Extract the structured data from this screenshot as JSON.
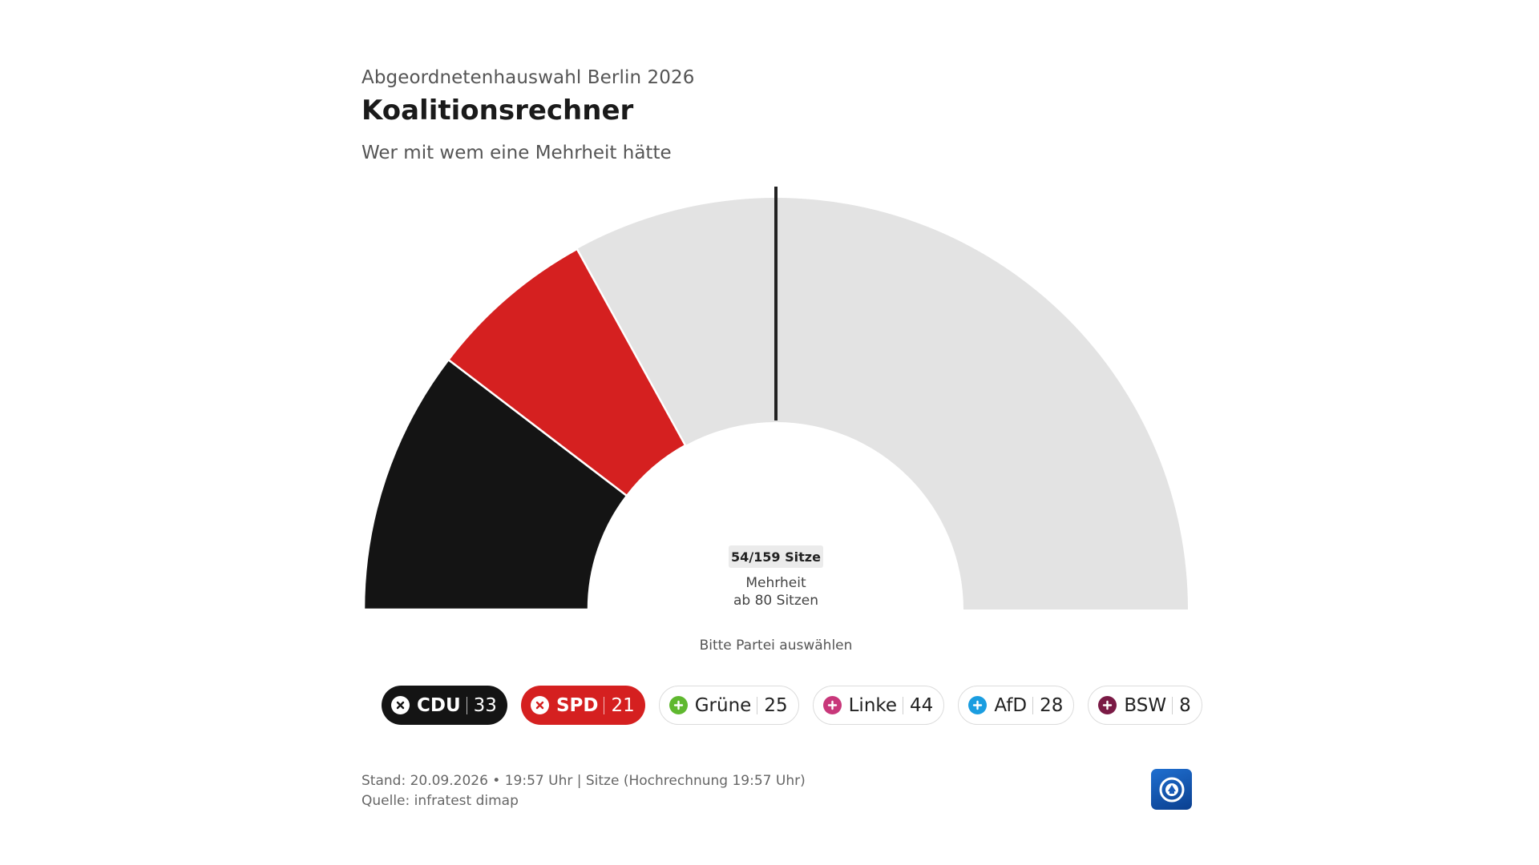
{
  "header": {
    "overline": "Abgeordnetenhauswahl Berlin 2026",
    "title": "Koalitionsrechner",
    "subtitle": "Wer mit wem eine Mehrheit hätte"
  },
  "chart_data": {
    "type": "half-donut (parliament seats)",
    "total_seats": 159,
    "majority_seats": 80,
    "selected_total": 54,
    "seat_label": "54/159 Sitze",
    "majority_label_line1": "Mehrheit",
    "majority_label_line2": "ab 80 Sitzen",
    "unselected_color": "#e3e3e3",
    "series": [
      {
        "name": "CDU",
        "seats": 33,
        "color": "#141414",
        "selected": true
      },
      {
        "name": "SPD",
        "seats": 21,
        "color": "#d52020",
        "selected": true
      }
    ]
  },
  "hint": "Bitte Partei auswählen",
  "parties": [
    {
      "name": "CDU",
      "seats": "33",
      "color": "#141414",
      "selected": true,
      "icon": "close-icon"
    },
    {
      "name": "SPD",
      "seats": "21",
      "color": "#d52020",
      "selected": true,
      "icon": "close-icon"
    },
    {
      "name": "Grüne",
      "seats": "25",
      "color": "#5fb82f",
      "selected": false,
      "icon": "plus-icon"
    },
    {
      "name": "Linke",
      "seats": "44",
      "color": "#c8377a",
      "selected": false,
      "icon": "plus-icon"
    },
    {
      "name": "AfD",
      "seats": "28",
      "color": "#1a9de0",
      "selected": false,
      "icon": "plus-icon"
    },
    {
      "name": "BSW",
      "seats": "8",
      "color": "#7a1a45",
      "selected": false,
      "icon": "plus-icon"
    }
  ],
  "footer": {
    "stand": "Stand: 20.09.2026 • 19:57 Uhr | Sitze (Hochrechnung 19:57 Uhr)",
    "source": "Quelle: infratest dimap"
  },
  "logo": {
    "name": "ard-tagesschau-logo-icon"
  }
}
